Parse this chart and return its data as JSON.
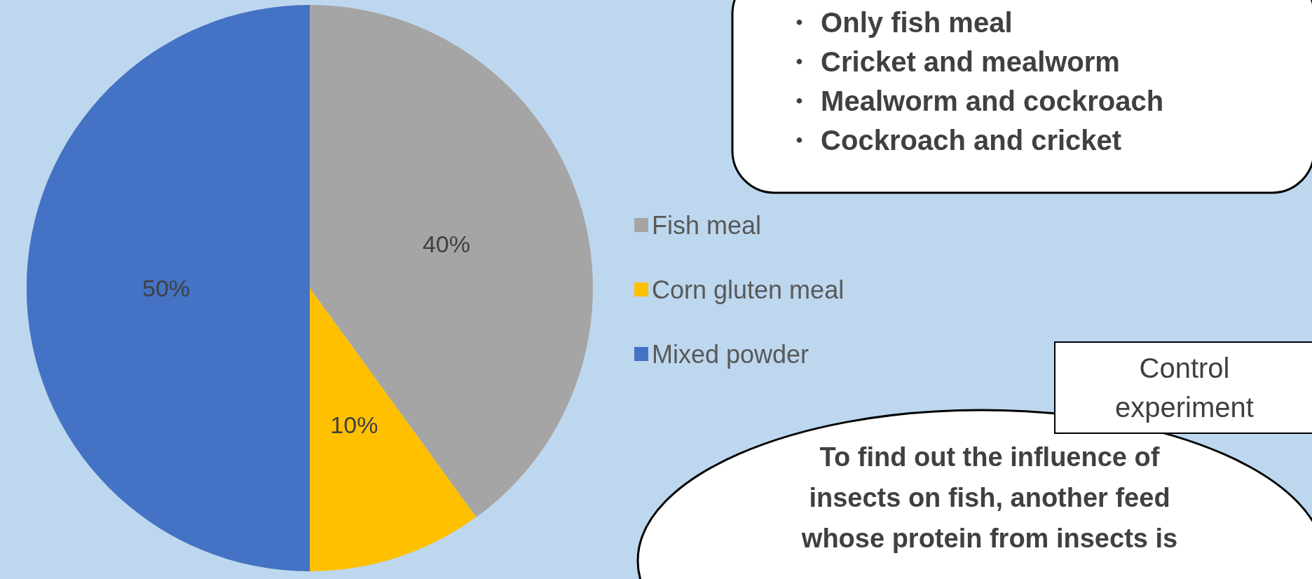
{
  "chart_data": {
    "type": "pie",
    "categories": [
      "Fish meal",
      "Corn gluten meal",
      "Mixed powder"
    ],
    "values": [
      40,
      10,
      50
    ],
    "colors": [
      "#a5a5a5",
      "#ffc000",
      "#4472c4"
    ],
    "value_labels": [
      "40%",
      "10%",
      "50%"
    ],
    "legend": "right",
    "annotations": [
      "・ Only fish meal",
      "・ Cricket and mealworm",
      "・ Mealworm and cockroach",
      "・ Cockroach and cricket",
      "Control\nexperiment",
      "To find out the influence of\ninsects on fish, another feed\nwhose protein from insects is"
    ]
  }
}
